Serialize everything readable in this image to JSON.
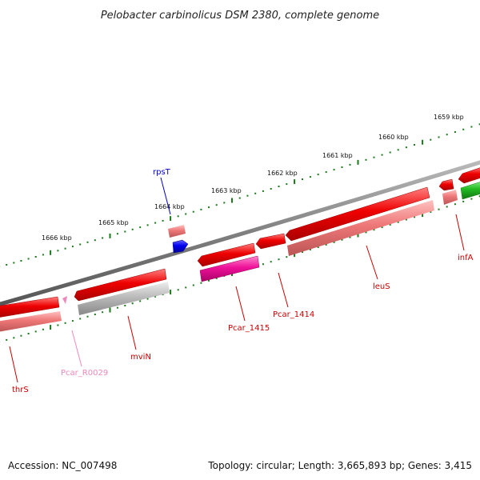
{
  "title": "Pelobacter carbinolicus DSM 2380, complete genome",
  "footer": {
    "accession": "Accession: NC_007498",
    "summary": "Topology: circular; Length: 3,665,893 bp; Genes: 3,415"
  },
  "axis": {
    "unit": "kbp",
    "tick_labels": [
      "1666 kbp",
      "1665 kbp",
      "1664 kbp",
      "1663 kbp",
      "1662 kbp",
      "1661 kbp",
      "1660 kbp",
      "1659 kbp"
    ]
  },
  "genes": [
    {
      "name": "thrS",
      "color": "#cc0000"
    },
    {
      "name": "Pcar_R0029",
      "color": "#ee88bb"
    },
    {
      "name": "mviN",
      "color": "#cc0000"
    },
    {
      "name": "rpsT",
      "color": "#0000cc"
    },
    {
      "name": "Pcar_1415",
      "color": "#cc0000"
    },
    {
      "name": "Pcar_1414",
      "color": "#cc0000"
    },
    {
      "name": "leuS",
      "color": "#cc0000"
    },
    {
      "name": "infA",
      "color": "#cc0000"
    }
  ],
  "colors": {
    "cds_forward": "#ee0000",
    "cds_reverse": "#ee7777",
    "rna": "#0000ee",
    "pseudo": "#bbbbbb",
    "highlight": "#ee1199",
    "other": "#22bb22",
    "backbone": "#808080",
    "tick": "#1a7a1a"
  }
}
